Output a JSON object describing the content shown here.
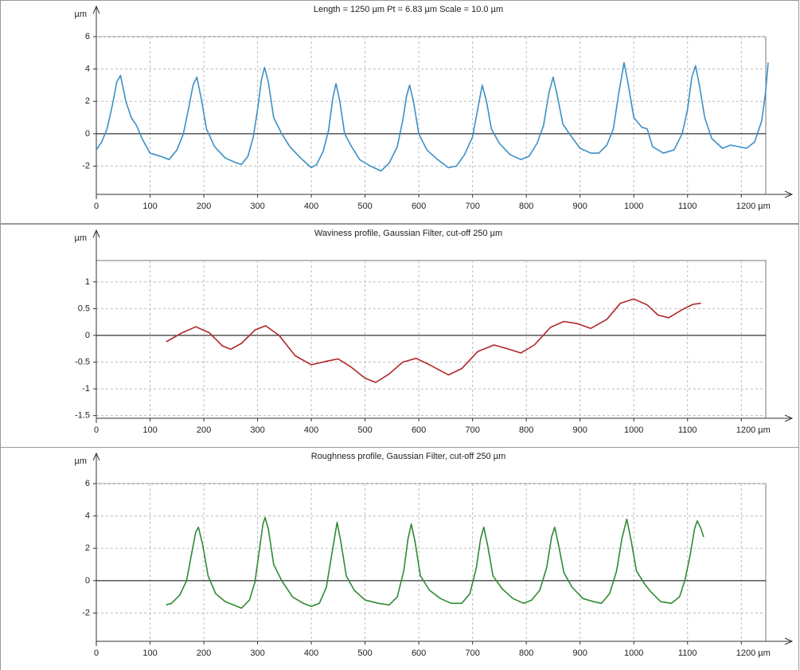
{
  "chart_data": [
    {
      "type": "line",
      "title": "Length = 1250 µm  Pt = 6.83 µm  Scale = 10.0 µm",
      "y_label": "µm",
      "color": "#3d8fc6",
      "x": [
        0,
        10,
        20,
        30,
        38,
        45,
        55,
        65,
        75,
        85,
        100,
        120,
        135,
        150,
        162,
        172,
        180,
        187,
        195,
        205,
        220,
        240,
        260,
        270,
        282,
        292,
        300,
        307,
        313,
        320,
        330,
        345,
        360,
        380,
        400,
        410,
        422,
        432,
        440,
        446,
        453,
        462,
        475,
        490,
        510,
        530,
        545,
        560,
        570,
        577,
        583,
        590,
        600,
        615,
        635,
        655,
        670,
        685,
        700,
        710,
        718,
        726,
        735,
        750,
        770,
        790,
        805,
        820,
        832,
        842,
        850,
        858,
        868,
        880,
        900,
        920,
        935,
        950,
        962,
        972,
        982,
        990,
        1000,
        1015,
        1025,
        1035,
        1055,
        1075,
        1090,
        1100,
        1108,
        1115,
        1122,
        1132,
        1145,
        1165,
        1180,
        1195,
        1210,
        1225,
        1238,
        1245,
        1250
      ],
      "values": [
        -1.0,
        -0.5,
        0.3,
        1.8,
        3.2,
        3.6,
        2.0,
        1.0,
        0.5,
        -0.3,
        -1.2,
        -1.4,
        -1.6,
        -1.0,
        0.0,
        1.6,
        3.0,
        3.5,
        2.2,
        0.3,
        -0.8,
        -1.5,
        -1.8,
        -1.9,
        -1.4,
        -0.2,
        1.5,
        3.3,
        4.1,
        3.2,
        1.0,
        0.0,
        -0.8,
        -1.5,
        -2.1,
        -1.9,
        -1.1,
        0.2,
        2.2,
        3.1,
        2.0,
        0.0,
        -0.8,
        -1.6,
        -2.0,
        -2.3,
        -1.8,
        -0.8,
        0.8,
        2.3,
        3.0,
        2.0,
        0.0,
        -1.0,
        -1.6,
        -2.1,
        -2.0,
        -1.3,
        -0.2,
        1.6,
        3.0,
        2.0,
        0.3,
        -0.6,
        -1.3,
        -1.6,
        -1.4,
        -0.6,
        0.5,
        2.5,
        3.5,
        2.3,
        0.6,
        0.0,
        -0.9,
        -1.2,
        -1.2,
        -0.7,
        0.3,
        2.5,
        4.4,
        3.0,
        1.0,
        0.4,
        0.3,
        -0.8,
        -1.2,
        -1.0,
        0.0,
        1.5,
        3.5,
        4.2,
        3.0,
        1.0,
        -0.3,
        -0.9,
        -0.7,
        -0.8,
        -0.9,
        -0.5,
        0.8,
        2.5,
        4.4
      ],
      "xlim": [
        0,
        1250
      ],
      "xticks": [
        0,
        100,
        200,
        300,
        400,
        500,
        600,
        700,
        800,
        900,
        1000,
        1100,
        {
          "value": 1200,
          "label": "1200 µm"
        }
      ],
      "ylim": [
        -3.75,
        6
      ],
      "yticks": [
        -2,
        0,
        2,
        4,
        6
      ],
      "grid": true
    },
    {
      "type": "line",
      "title": "Waviness profile, Gaussian Filter, cut-off 250 µm",
      "y_label": "µm",
      "color": "#b0262a",
      "x": [
        130,
        160,
        185,
        210,
        235,
        250,
        270,
        295,
        315,
        340,
        370,
        400,
        430,
        450,
        475,
        500,
        520,
        545,
        570,
        595,
        620,
        655,
        680,
        710,
        740,
        765,
        790,
        815,
        845,
        870,
        895,
        920,
        950,
        975,
        1000,
        1025,
        1045,
        1065,
        1090,
        1110,
        1125
      ],
      "values": [
        -0.12,
        0.05,
        0.16,
        0.05,
        -0.2,
        -0.26,
        -0.15,
        0.1,
        0.18,
        0.0,
        -0.38,
        -0.55,
        -0.48,
        -0.44,
        -0.6,
        -0.8,
        -0.88,
        -0.72,
        -0.5,
        -0.43,
        -0.55,
        -0.74,
        -0.62,
        -0.3,
        -0.18,
        -0.25,
        -0.33,
        -0.18,
        0.15,
        0.26,
        0.22,
        0.13,
        0.3,
        0.6,
        0.68,
        0.57,
        0.38,
        0.33,
        0.48,
        0.58,
        0.6
      ],
      "xlim": [
        0,
        1250
      ],
      "xticks": [
        0,
        100,
        200,
        300,
        400,
        500,
        600,
        700,
        800,
        900,
        1000,
        1100,
        {
          "value": 1200,
          "label": "1200 µm"
        }
      ],
      "ylim": [
        -1.55,
        1.4
      ],
      "yticks": [
        -1.5,
        -1,
        -0.5,
        0,
        0.5,
        1
      ],
      "grid": true
    },
    {
      "type": "line",
      "title": "Roughness profile, Gaussian Filter, cut-off 250 µm",
      "y_label": "µm",
      "color": "#2e8b32",
      "x": [
        130,
        140,
        155,
        168,
        178,
        185,
        190,
        198,
        208,
        222,
        240,
        255,
        270,
        285,
        295,
        303,
        310,
        314,
        320,
        330,
        345,
        365,
        385,
        400,
        415,
        428,
        438,
        448,
        455,
        465,
        480,
        500,
        525,
        545,
        560,
        572,
        580,
        586,
        593,
        603,
        620,
        640,
        660,
        680,
        695,
        707,
        715,
        721,
        728,
        738,
        755,
        775,
        795,
        810,
        825,
        838,
        847,
        853,
        860,
        870,
        885,
        905,
        925,
        940,
        955,
        968,
        978,
        987,
        995,
        1005,
        1020,
        1032,
        1050,
        1070,
        1085,
        1095,
        1105,
        1113,
        1118,
        1124,
        1130
      ],
      "values": [
        -1.5,
        -1.4,
        -0.9,
        0.0,
        1.8,
        3.0,
        3.3,
        2.2,
        0.3,
        -0.8,
        -1.3,
        -1.5,
        -1.7,
        -1.2,
        -0.1,
        1.8,
        3.5,
        3.9,
        3.2,
        1.0,
        0.0,
        -1.0,
        -1.4,
        -1.6,
        -1.4,
        -0.4,
        1.6,
        3.6,
        2.4,
        0.3,
        -0.6,
        -1.2,
        -1.4,
        -1.5,
        -1.0,
        0.6,
        2.6,
        3.5,
        2.4,
        0.3,
        -0.6,
        -1.1,
        -1.4,
        -1.4,
        -0.8,
        0.8,
        2.6,
        3.3,
        2.2,
        0.3,
        -0.5,
        -1.1,
        -1.4,
        -1.2,
        -0.6,
        0.8,
        2.7,
        3.3,
        2.2,
        0.5,
        -0.4,
        -1.1,
        -1.3,
        -1.4,
        -0.8,
        0.6,
        2.6,
        3.8,
        2.5,
        0.6,
        -0.2,
        -0.7,
        -1.3,
        -1.4,
        -1.0,
        0.0,
        1.6,
        3.2,
        3.7,
        3.3,
        2.7
      ],
      "xlim": [
        0,
        1250
      ],
      "xticks": [
        0,
        100,
        200,
        300,
        400,
        500,
        600,
        700,
        800,
        900,
        1000,
        1100,
        {
          "value": 1200,
          "label": "1200 µm"
        }
      ],
      "ylim": [
        -3.75,
        6
      ],
      "yticks": [
        -2,
        0,
        2,
        4,
        6
      ],
      "grid": true
    }
  ]
}
